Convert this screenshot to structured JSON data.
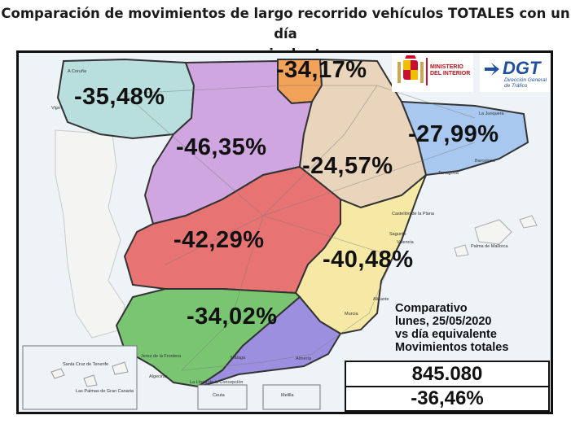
{
  "title_line1": "Comparación de movimientos de largo recorrido vehículos TOTALES con un día",
  "title_line2": "equivalente",
  "regions": {
    "galicia": "-35,48%",
    "cantabria": "-34,17%",
    "castilla_leon": "-46,35%",
    "ebro": "-24,57%",
    "cataluna": "-27,99%",
    "centro": "-42,29%",
    "levante": "-40,48%",
    "andalucia_occ": "-34,02%"
  },
  "logos": {
    "ministerio": "MINISTERIO\nDEL INTERIOR",
    "dgt": "DGT",
    "dgt_sub": "Dirección General\nde Tráfico"
  },
  "legend": {
    "line1": "Comparativo",
    "line2": "lunes, 25/05/2020",
    "line3": "vs día equivalente",
    "line4": "Movimientos totales",
    "total": "845.080",
    "total_pct": "-36,46%"
  },
  "cities": {
    "a_coruna": "A Coruña",
    "lugo": "Lugo",
    "vigo": "Vigo",
    "santander": "Santander",
    "valencia": "Valencia",
    "palma": "Palma de Mallorca",
    "barcelona": "Barcelona",
    "girona": "Girona",
    "tarragona": "Tarragona",
    "castellon": "Castellón de la Plana",
    "cadiz": "Cádiz",
    "malaga": "Málaga",
    "almeria": "Almería",
    "ceuta": "Ceuta",
    "melilla": "Melilla",
    "murcia": "Murcia",
    "alicante": "Alicante",
    "sc_tenerife": "Santa Cruz de Tenerife",
    "las_palmas": "Las Palmas de Gran Canaria",
    "jerez": "Jerez de la Frontera",
    "algeciras": "Algeciras",
    "la_linea": "La Línea de la Concepción",
    "sagunto": "Sagunto",
    "la_junquera": "La Junquera"
  },
  "colors": {
    "galicia": "#b8dedd",
    "cantabria": "#f3a25a",
    "castilla_leon": "#cfa6e0",
    "ebro": "#e9d4bc",
    "cataluna": "#a9c8ef",
    "centro": "#e87373",
    "levante": "#f6e9a6",
    "andalucia_occ": "#79c571",
    "andalucia_or": "#9c8fe0"
  }
}
